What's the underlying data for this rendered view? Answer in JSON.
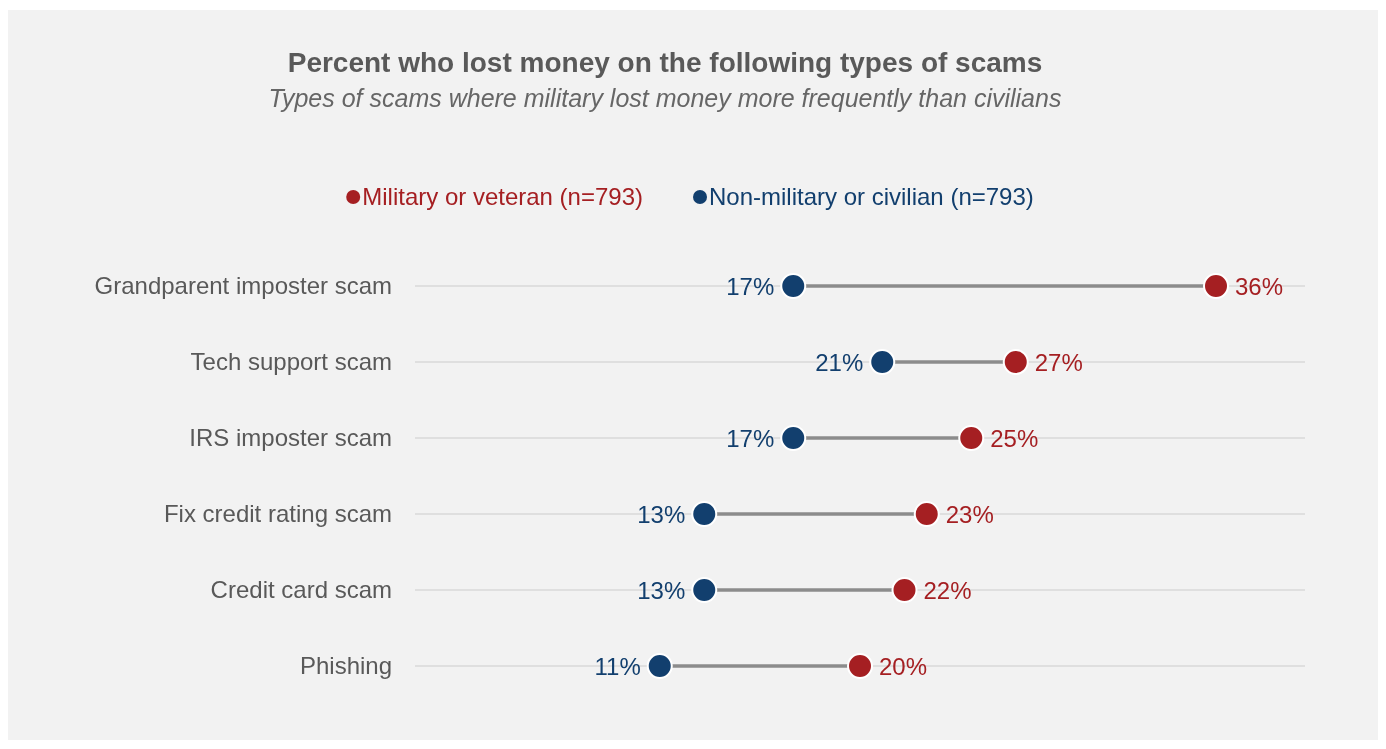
{
  "chart_data": {
    "type": "scatter",
    "orientation": "horizontal",
    "title": "Percent who lost money on the following types of scams",
    "subtitle": "Types of scams where military lost money more frequently than civilians",
    "categories": [
      "Grandparent imposter scam",
      "Tech support scam",
      "IRS imposter scam",
      "Fix credit rating scam",
      "Credit card scam",
      "Phishing"
    ],
    "xlim": [
      0,
      40
    ],
    "tick_labels": "y",
    "grid": "y",
    "legend": "top",
    "marker": "circle",
    "series": [
      {
        "name": "Military or veteran (n=793)",
        "color": "#a51f22",
        "values": [
          36,
          27,
          25,
          23,
          22,
          20
        ],
        "value_labels": [
          "36%",
          "27%",
          "25%",
          "23%",
          "22%",
          "20%"
        ]
      },
      {
        "name": "Non-military or civilian (n=793)",
        "color": "#123f6e",
        "values": [
          17,
          21,
          17,
          13,
          13,
          11
        ],
        "value_labels": [
          "17%",
          "21%",
          "17%",
          "13%",
          "13%",
          "11%"
        ]
      }
    ]
  }
}
